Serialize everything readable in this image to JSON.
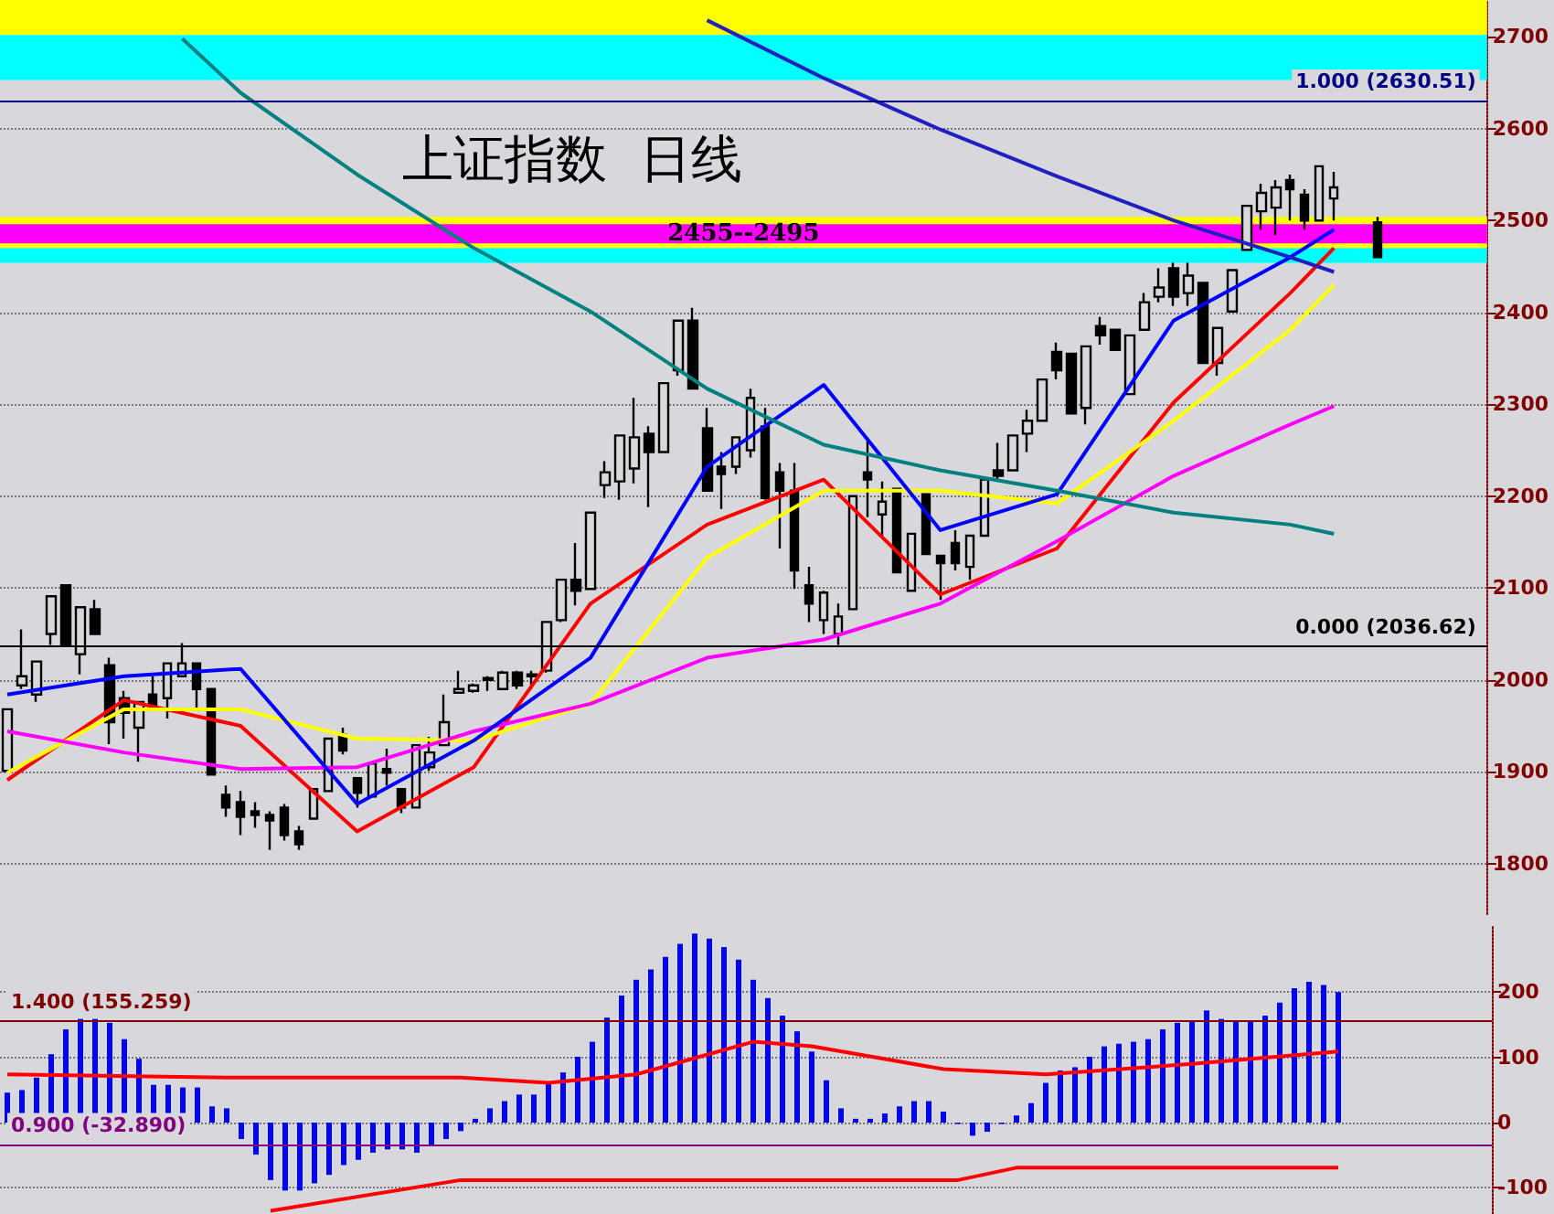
{
  "chart_data": [
    {
      "type": "candlestick",
      "title": "上证指数  日线",
      "categories": [
        null,
        null,
        null,
        null,
        null,
        null,
        null,
        null,
        null,
        null,
        null,
        null,
        null,
        null,
        null,
        null,
        null,
        null,
        null,
        null,
        null,
        null,
        null,
        null,
        null,
        null,
        null,
        null,
        null,
        null,
        null,
        null,
        null,
        null,
        null,
        null,
        null,
        null,
        null,
        null,
        null,
        null,
        null,
        null,
        null,
        null,
        null,
        null,
        null,
        null,
        null,
        null,
        null,
        null,
        null,
        null,
        null,
        null,
        null,
        null,
        null,
        null,
        null,
        null,
        null,
        null,
        null,
        null,
        null,
        null,
        null,
        null,
        null,
        null,
        null,
        null,
        null,
        null,
        null,
        null,
        null,
        null,
        null,
        null,
        null,
        null,
        null,
        null,
        null,
        null,
        null,
        null,
        null,
        null,
        null,
        null,
        null,
        null,
        null,
        null,
        null,
        null
      ],
      "series": [
        {
          "color": "#000000",
          "ohlc": [
            [
              1901,
              1968,
              1901,
              1968
            ],
            [
              1994,
              2055,
              1990,
              2004
            ],
            [
              1984,
              2020,
              1976,
              2020
            ],
            [
              2050,
              2091,
              2038,
              2091
            ],
            [
              2103,
              2103,
              2038,
              2038
            ],
            [
              2028,
              2079,
              2006,
              2079
            ],
            [
              2077,
              2087,
              2050,
              2050
            ],
            [
              2016,
              2024,
              1930,
              1954
            ],
            [
              1980,
              1988,
              1936,
              1964
            ],
            [
              1948,
              1976,
              1911,
              1976
            ],
            [
              1984,
              2004,
              1970,
              1972
            ],
            [
              1980,
              2018,
              1958,
              2018
            ],
            [
              2004,
              2040,
              2004,
              2018
            ],
            [
              2018,
              2018,
              1966,
              1990
            ],
            [
              1990,
              1990,
              1897,
              1897
            ],
            [
              1875,
              1885,
              1851,
              1861
            ],
            [
              1867,
              1879,
              1831,
              1851
            ],
            [
              1857,
              1867,
              1839,
              1853
            ],
            [
              1853,
              1857,
              1815,
              1847
            ],
            [
              1861,
              1865,
              1825,
              1831
            ],
            [
              1835,
              1841,
              1815,
              1821
            ],
            [
              1849,
              1881,
              1849,
              1881
            ],
            [
              1879,
              1936,
              1879,
              1936
            ],
            [
              1940,
              1948,
              1919,
              1923
            ],
            [
              1893,
              1893,
              1861,
              1877
            ],
            [
              1873,
              1909,
              1873,
              1909
            ],
            [
              1903,
              1925,
              1885,
              1899
            ],
            [
              1881,
              1881,
              1855,
              1861
            ],
            [
              1861,
              1929,
              1861,
              1929
            ],
            [
              1905,
              1938,
              1901,
              1921
            ],
            [
              1929,
              1984,
              1929,
              1954
            ],
            [
              1986,
              2010,
              1986,
              1990
            ],
            [
              1988,
              1996,
              1986,
              1994
            ],
            [
              2000,
              2004,
              1988,
              2002
            ],
            [
              1990,
              2010,
              1990,
              2008
            ],
            [
              2008,
              2010,
              1990,
              1994
            ],
            [
              2004,
              2010,
              1990,
              2006
            ],
            [
              2010,
              2063,
              2008,
              2063
            ],
            [
              2065,
              2109,
              2063,
              2109
            ],
            [
              2109,
              2149,
              2081,
              2097
            ],
            [
              2099,
              2182,
              2099,
              2182
            ],
            [
              2212,
              2238,
              2198,
              2226
            ],
            [
              2216,
              2266,
              2196,
              2266
            ],
            [
              2230,
              2307,
              2214,
              2264
            ],
            [
              2268,
              2276,
              2188,
              2248
            ],
            [
              2248,
              2323,
              2248,
              2323
            ],
            [
              2337,
              2391,
              2331,
              2391
            ],
            [
              2391,
              2405,
              2317,
              2317
            ],
            [
              2274,
              2296,
              2206,
              2206
            ],
            [
              2232,
              2248,
              2186,
              2224
            ],
            [
              2232,
              2264,
              2224,
              2264
            ],
            [
              2250,
              2317,
              2242,
              2307
            ],
            [
              2276,
              2296,
              2196,
              2198
            ],
            [
              2226,
              2236,
              2143,
              2206
            ],
            [
              2206,
              2236,
              2099,
              2119
            ],
            [
              2103,
              2123,
              2063,
              2083
            ],
            [
              2065,
              2097,
              2050,
              2095
            ],
            [
              2050,
              2083,
              2038,
              2069
            ],
            [
              2077,
              2200,
              2077,
              2200
            ],
            [
              2226,
              2262,
              2177,
              2218
            ],
            [
              2180,
              2216,
              2157,
              2194
            ],
            [
              2208,
              2208,
              2117,
              2117
            ],
            [
              2097,
              2159,
              2097,
              2159
            ],
            [
              2202,
              2202,
              2137,
              2137
            ],
            [
              2135,
              2135,
              2087,
              2127
            ],
            [
              2149,
              2163,
              2119,
              2127
            ],
            [
              2123,
              2157,
              2109,
              2157
            ],
            [
              2157,
              2218,
              2157,
              2218
            ],
            [
              2228,
              2258,
              2218,
              2222
            ],
            [
              2228,
              2266,
              2228,
              2266
            ],
            [
              2268,
              2294,
              2248,
              2282
            ],
            [
              2282,
              2327,
              2282,
              2327
            ],
            [
              2357,
              2367,
              2327,
              2337
            ],
            [
              2355,
              2355,
              2290,
              2290
            ],
            [
              2296,
              2363,
              2278,
              2363
            ],
            [
              2385,
              2395,
              2365,
              2375
            ],
            [
              2381,
              2381,
              2359,
              2359
            ],
            [
              2311,
              2375,
              2311,
              2375
            ],
            [
              2381,
              2421,
              2381,
              2411
            ],
            [
              2417,
              2448,
              2411,
              2427
            ],
            [
              2448,
              2454,
              2407,
              2417
            ],
            [
              2421,
              2454,
              2407,
              2440
            ],
            [
              2432,
              2432,
              2345,
              2345
            ],
            [
              2345,
              2383,
              2331,
              2383
            ],
            [
              2401,
              2446,
              2401,
              2446
            ],
            [
              2468,
              2516,
              2468,
              2516
            ],
            [
              2510,
              2540,
              2490,
              2530
            ],
            [
              2514,
              2544,
              2484,
              2536
            ],
            [
              2544,
              2550,
              2500,
              2534
            ],
            [
              2528,
              2534,
              2490,
              2500
            ],
            [
              2500,
              2559,
              2500,
              2559
            ],
            [
              2524,
              2553,
              2500,
              2536
            ],
            null,
            null,
            [
              2498,
              2504,
              2460,
              2460
            ],
            null,
            null,
            null,
            null,
            null,
            null,
            null
          ]
        },
        {
          "type": "line",
          "color": "#ff0000",
          "values": [
            1891,
            null,
            null,
            null,
            null,
            null,
            null,
            null,
            1978,
            null,
            null,
            null,
            null,
            null,
            null,
            null,
            1950,
            null,
            null,
            null,
            null,
            null,
            null,
            null,
            1835,
            null,
            null,
            null,
            null,
            null,
            null,
            null,
            1905,
            null,
            null,
            null,
            null,
            null,
            null,
            null,
            2083,
            null,
            null,
            null,
            null,
            null,
            null,
            null,
            2169,
            null,
            null,
            null,
            null,
            null,
            null,
            null,
            2218,
            null,
            null,
            null,
            null,
            null,
            null,
            null,
            2093,
            null,
            null,
            null,
            null,
            null,
            null,
            null,
            2143,
            null,
            null,
            null,
            null,
            null,
            null,
            null,
            2302,
            null,
            null,
            null,
            null,
            null,
            null,
            null,
            2421,
            null,
            null,
            2470,
            null,
            null,
            null,
            null,
            null,
            null,
            null,
            null,
            null,
            null
          ]
        },
        {
          "type": "line",
          "color": "#ffff00",
          "values": [
            1899,
            null,
            null,
            null,
            null,
            null,
            null,
            null,
            1968,
            null,
            null,
            null,
            null,
            null,
            null,
            null,
            1968,
            null,
            null,
            null,
            null,
            null,
            null,
            null,
            1936,
            null,
            null,
            null,
            null,
            null,
            null,
            null,
            1934,
            null,
            null,
            null,
            null,
            null,
            null,
            null,
            1974,
            null,
            null,
            null,
            null,
            null,
            null,
            null,
            2133,
            null,
            null,
            null,
            null,
            null,
            null,
            null,
            2206,
            null,
            null,
            null,
            null,
            null,
            null,
            null,
            2206,
            null,
            null,
            null,
            null,
            null,
            null,
            null,
            2192,
            null,
            null,
            null,
            null,
            null,
            null,
            null,
            2282,
            null,
            null,
            null,
            null,
            null,
            null,
            null,
            2381,
            null,
            null,
            2430,
            null,
            null,
            null,
            null,
            null,
            null,
            null,
            null,
            null,
            null
          ]
        },
        {
          "type": "line",
          "color": "#ff00ff",
          "values": [
            1944,
            null,
            null,
            null,
            null,
            null,
            null,
            null,
            1921,
            null,
            null,
            null,
            null,
            null,
            null,
            null,
            1903,
            null,
            null,
            null,
            null,
            null,
            null,
            null,
            1905,
            null,
            null,
            null,
            null,
            null,
            null,
            null,
            1944,
            null,
            null,
            null,
            null,
            null,
            null,
            null,
            1974,
            null,
            null,
            null,
            null,
            null,
            null,
            null,
            2024,
            null,
            null,
            null,
            null,
            null,
            null,
            null,
            2044,
            null,
            null,
            null,
            null,
            null,
            null,
            null,
            2083,
            null,
            null,
            null,
            null,
            null,
            null,
            null,
            2151,
            null,
            null,
            null,
            null,
            null,
            null,
            null,
            2222,
            null,
            null,
            null,
            null,
            null,
            null,
            null,
            2278,
            null,
            null,
            2298,
            null,
            null,
            null,
            null,
            null,
            null,
            null,
            null,
            null,
            null
          ]
        },
        {
          "type": "line",
          "color": "#0000ff",
          "values": [
            1984,
            null,
            null,
            null,
            null,
            null,
            null,
            null,
            2004,
            null,
            null,
            null,
            null,
            null,
            null,
            null,
            2012,
            null,
            null,
            null,
            null,
            null,
            null,
            null,
            1865,
            null,
            null,
            null,
            null,
            null,
            null,
            null,
            1934,
            null,
            null,
            null,
            null,
            null,
            null,
            null,
            2024,
            null,
            null,
            null,
            null,
            null,
            null,
            null,
            2232,
            null,
            null,
            null,
            null,
            null,
            null,
            null,
            2321,
            null,
            null,
            null,
            null,
            null,
            null,
            null,
            2163,
            null,
            null,
            null,
            null,
            null,
            null,
            null,
            2202,
            null,
            null,
            null,
            null,
            null,
            null,
            null,
            2391,
            null,
            null,
            null,
            null,
            null,
            null,
            null,
            2460,
            null,
            null,
            2490,
            null,
            null,
            null,
            null,
            null,
            null,
            null,
            null,
            null,
            null
          ]
        },
        {
          "type": "line",
          "color": "#008080",
          "values": [
            null,
            null,
            null,
            null,
            null,
            null,
            null,
            null,
            null,
            null,
            null,
            null,
            2698,
            null,
            null,
            null,
            2639,
            null,
            null,
            null,
            null,
            null,
            null,
            null,
            2550,
            null,
            null,
            null,
            null,
            null,
            null,
            null,
            2470,
            null,
            null,
            null,
            null,
            null,
            null,
            null,
            2401,
            null,
            null,
            null,
            null,
            null,
            null,
            null,
            2317,
            null,
            null,
            null,
            null,
            null,
            null,
            null,
            2256,
            null,
            null,
            null,
            null,
            null,
            null,
            null,
            2228,
            null,
            null,
            null,
            null,
            null,
            null,
            null,
            2206,
            null,
            null,
            null,
            null,
            null,
            null,
            null,
            2182,
            null,
            null,
            null,
            null,
            null,
            null,
            null,
            2169,
            null,
            null,
            2159,
            null,
            null,
            null,
            null,
            null,
            null,
            null,
            null,
            null,
            null
          ]
        },
        {
          "type": "line",
          "color": "#2020c0",
          "values": [
            null,
            null,
            null,
            null,
            null,
            null,
            null,
            null,
            null,
            null,
            null,
            null,
            null,
            null,
            null,
            null,
            null,
            null,
            null,
            null,
            null,
            null,
            null,
            null,
            null,
            null,
            null,
            null,
            null,
            null,
            null,
            null,
            null,
            null,
            null,
            null,
            null,
            null,
            null,
            null,
            null,
            null,
            null,
            null,
            null,
            null,
            null,
            null,
            2718,
            null,
            null,
            null,
            null,
            null,
            null,
            null,
            2655,
            null,
            null,
            null,
            null,
            null,
            null,
            null,
            2599,
            null,
            null,
            null,
            null,
            null,
            null,
            null,
            2548,
            null,
            null,
            null,
            null,
            null,
            null,
            null,
            2500,
            null,
            null,
            null,
            null,
            null,
            null,
            null,
            2460,
            null,
            null,
            2444,
            null,
            null,
            null,
            null,
            null,
            null,
            null,
            null,
            null,
            null
          ]
        }
      ],
      "ylim": [
        1745,
        2740
      ],
      "yticks": [
        1800,
        1900,
        2000,
        2100,
        2200,
        2300,
        2400,
        2500,
        2600,
        2700
      ],
      "grid": "y",
      "tick_labels": "y",
      "bands": [
        {
          "axis": "y",
          "from": 2702,
          "to": 2740,
          "color": "#ffff00"
        },
        {
          "axis": "y",
          "from": 2653,
          "to": 2702,
          "color": "#00ffff"
        },
        {
          "axis": "y",
          "from": 2454,
          "to": 2470,
          "color": "#00ffff"
        },
        {
          "axis": "y",
          "from": 2470,
          "to": 2504,
          "color": "#ffff00"
        },
        {
          "axis": "y",
          "from": 2475,
          "to": 2496,
          "color": "#ff00ff",
          "label": "2455--2495"
        }
      ],
      "ref_lines": [
        {
          "axis": "y",
          "value": 2630.51,
          "label": "1.000 (2630.51)",
          "color": "#000080"
        },
        {
          "axis": "y",
          "value": 2036.62,
          "label": "0.000 (2036.62)",
          "color": "#000000"
        }
      ]
    },
    {
      "type": "bar",
      "categories": [
        null,
        null,
        null,
        null,
        null,
        null,
        null,
        null,
        null,
        null,
        null,
        null,
        null,
        null,
        null,
        null,
        null,
        null,
        null,
        null,
        null,
        null,
        null,
        null,
        null,
        null,
        null,
        null,
        null,
        null,
        null,
        null,
        null,
        null,
        null,
        null,
        null,
        null,
        null,
        null,
        null,
        null,
        null,
        null,
        null,
        null,
        null,
        null,
        null,
        null,
        null,
        null,
        null,
        null,
        null,
        null,
        null,
        null,
        null,
        null,
        null,
        null,
        null,
        null,
        null,
        null,
        null,
        null,
        null,
        null,
        null,
        null,
        null,
        null,
        null,
        null,
        null,
        null,
        null,
        null,
        null,
        null,
        null,
        null,
        null,
        null,
        null,
        null,
        null,
        null,
        null,
        null,
        null,
        null,
        null,
        null,
        null,
        null,
        null,
        null,
        null,
        null
      ],
      "series": [
        {
          "color": "#0000ff",
          "values": [
            46,
            50,
            69,
            105,
            143,
            159,
            159,
            153,
            128,
            98,
            58,
            58,
            54,
            54,
            25,
            22,
            -25,
            -49,
            -88,
            -104,
            -104,
            -93,
            -80,
            -65,
            -57,
            -46,
            -41,
            -41,
            -46,
            -36,
            -25,
            -13,
            6,
            22,
            33,
            43,
            43,
            61,
            77,
            101,
            124,
            161,
            195,
            219,
            235,
            254,
            274,
            290,
            282,
            269,
            250,
            219,
            191,
            164,
            140,
            109,
            65,
            22,
            6,
            6,
            14,
            25,
            33,
            33,
            17,
            -2,
            -20,
            -14,
            -2,
            11,
            30,
            61,
            80,
            85,
            101,
            117,
            121,
            124,
            128,
            143,
            153,
            156,
            172,
            159,
            156,
            156,
            164,
            184,
            206,
            216,
            211,
            200,
            null,
            null,
            null,
            null,
            null,
            null,
            null,
            null,
            null,
            null
          ]
        },
        {
          "type": "line",
          "color": "#ff0000",
          "values": [
            74,
            null,
            null,
            null,
            null,
            null,
            null,
            null,
            null,
            null,
            null,
            null,
            null,
            null,
            null,
            69,
            null,
            null,
            null,
            null,
            null,
            null,
            null,
            null,
            null,
            null,
            null,
            null,
            null,
            null,
            null,
            69,
            null,
            null,
            null,
            null,
            null,
            61,
            null,
            null,
            null,
            null,
            null,
            74,
            null,
            null,
            null,
            null,
            null,
            null,
            null,
            124,
            null,
            null,
            null,
            117,
            null,
            null,
            null,
            null,
            null,
            null,
            null,
            null,
            82,
            null,
            null,
            null,
            null,
            null,
            null,
            74,
            null,
            null,
            null,
            null,
            null,
            null,
            null,
            null,
            null,
            90,
            null,
            null,
            null,
            null,
            null,
            null,
            null,
            null,
            null,
            109,
            null,
            null,
            null,
            null,
            null,
            null,
            null,
            null,
            null,
            null
          ]
        },
        {
          "type": "line",
          "color": "#ff0000",
          "values": [
            null,
            null,
            null,
            null,
            null,
            null,
            null,
            null,
            null,
            null,
            null,
            null,
            null,
            null,
            null,
            null,
            null,
            null,
            -135,
            null,
            null,
            null,
            null,
            null,
            null,
            null,
            null,
            null,
            null,
            null,
            null,
            -88,
            null,
            null,
            null,
            null,
            null,
            null,
            null,
            null,
            null,
            null,
            null,
            null,
            null,
            null,
            null,
            null,
            null,
            null,
            null,
            null,
            null,
            null,
            null,
            null,
            null,
            null,
            null,
            null,
            null,
            null,
            null,
            null,
            null,
            -88,
            null,
            null,
            null,
            -69,
            null,
            null,
            null,
            null,
            null,
            null,
            null,
            null,
            null,
            null,
            null,
            null,
            null,
            null,
            null,
            null,
            null,
            null,
            null,
            null,
            null,
            -69,
            null,
            null,
            null,
            null,
            null,
            null,
            null,
            null,
            null,
            null
          ]
        }
      ],
      "ylim": [
        -140,
        300
      ],
      "yticks": [
        -100,
        0,
        100,
        200
      ],
      "grid": "y",
      "tick_labels": "y",
      "ref_lines": [
        {
          "axis": "y",
          "value": 155.259,
          "label": "1.400 (155.259)",
          "color": "#800000"
        },
        {
          "axis": "y",
          "value": -32.89,
          "label": "0.900 (-32.890)",
          "color": "#800080"
        }
      ]
    }
  ]
}
